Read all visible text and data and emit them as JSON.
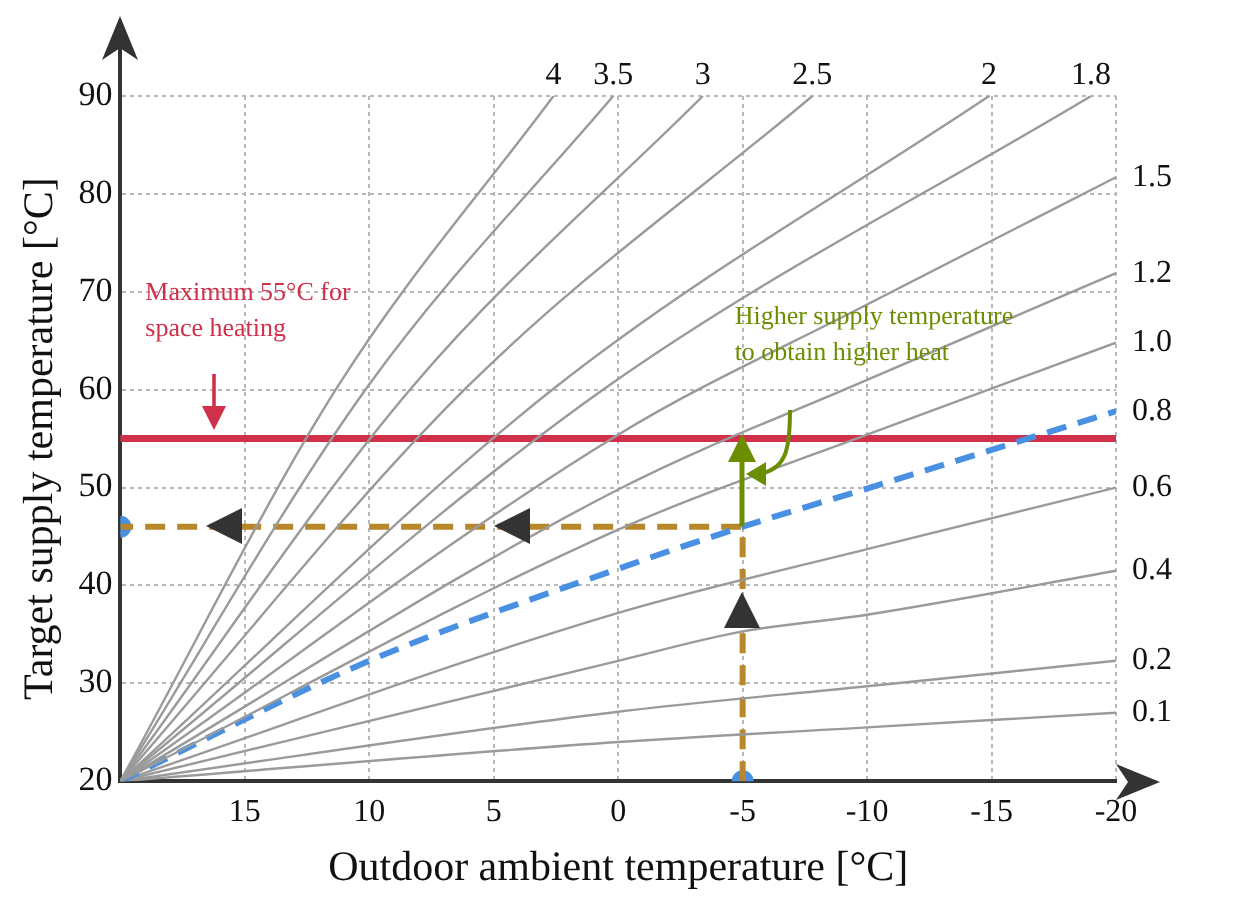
{
  "chart_data": {
    "type": "line",
    "xlabel": "Outdoor ambient temperature [°C]",
    "ylabel": "Target supply temperature [°C]",
    "xlim": [
      20,
      -20
    ],
    "xticks": [
      15,
      10,
      5,
      0,
      -5,
      -10,
      -15,
      -20
    ],
    "ylim": [
      20,
      90
    ],
    "yticks": [
      20,
      30,
      40,
      50,
      60,
      70,
      80,
      90
    ],
    "grid": true,
    "legend": false,
    "marker": "none",
    "series": [
      {
        "name": "4",
        "color": "#9a9a9a",
        "x": [
          20,
          11.3,
          2.6
        ],
        "values": [
          20,
          60.2,
          90
        ]
      },
      {
        "name": "3.5",
        "color": "#9a9a9a",
        "x": [
          20,
          10.1,
          0.2
        ],
        "values": [
          20,
          60.2,
          90
        ]
      },
      {
        "name": "3",
        "color": "#9a9a9a",
        "x": [
          20,
          8.3,
          -3.4
        ],
        "values": [
          20,
          60.2,
          90
        ]
      },
      {
        "name": "2.5",
        "color": "#9a9a9a",
        "x": [
          20,
          6.1,
          -7.8
        ],
        "values": [
          20,
          60.2,
          90
        ]
      },
      {
        "name": "2",
        "color": "#9a9a9a",
        "x": [
          20,
          2.55,
          -14.9
        ],
        "values": [
          20,
          60.2,
          90
        ]
      },
      {
        "name": "1.8",
        "color": "#9a9a9a",
        "x": [
          20,
          0.5,
          -19
        ],
        "values": [
          20,
          60.2,
          90
        ]
      },
      {
        "name": "1.5",
        "color": "#9a9a9a",
        "x": [
          20,
          0,
          -10,
          -20
        ],
        "values": [
          20,
          55.4,
          68.7,
          81.7
        ]
      },
      {
        "name": "1.2",
        "color": "#9a9a9a",
        "x": [
          20,
          0,
          -10,
          -20
        ],
        "values": [
          20,
          49.8,
          61,
          71.9
        ]
      },
      {
        "name": "1.0",
        "color": "#9a9a9a",
        "x": [
          20,
          0,
          -10,
          -20
        ],
        "values": [
          20,
          45.7,
          55.4,
          64.8
        ]
      },
      {
        "name": "0.8",
        "color": "#4a90e2",
        "line_style": "dashed",
        "x": [
          20,
          10,
          0,
          -5,
          -10,
          -20
        ],
        "values": [
          20,
          32.3,
          41.7,
          46,
          49.9,
          57.8
        ]
      },
      {
        "name": "0.6",
        "color": "#9a9a9a",
        "x": [
          20,
          0,
          -10,
          -20
        ],
        "values": [
          20,
          37.2,
          43.7,
          50
        ]
      },
      {
        "name": "0.4",
        "color": "#9a9a9a",
        "x": [
          20,
          0,
          -5,
          -10,
          -20
        ],
        "values": [
          20,
          32.3,
          35.3,
          37,
          41.5
        ]
      },
      {
        "name": "0.2",
        "color": "#9a9a9a",
        "x": [
          20,
          0,
          -10,
          -20
        ],
        "values": [
          20,
          27.1,
          29.7,
          32.3
        ]
      },
      {
        "name": "0.1",
        "color": "#9a9a9a",
        "x": [
          20,
          0,
          -10,
          -20
        ],
        "values": [
          20,
          24,
          25.5,
          27
        ]
      },
      {
        "type": "line",
        "color": "#b8862b",
        "line_style": "dashed",
        "x": [
          -5,
          -5,
          20
        ],
        "values": [
          20,
          46,
          46
        ]
      },
      {
        "type": "scatter",
        "color": "#4a90e2",
        "marker": "circle",
        "x": [
          -5,
          20
        ],
        "values": [
          20,
          46
        ]
      }
    ],
    "ref_lines": [
      {
        "axis": "y",
        "value": 55,
        "label": "Maximum 55°C for space heating",
        "color": "#d0304a"
      }
    ],
    "annotations": [
      {
        "text": "Higher supply temperature to obtain higher heat",
        "x": -5,
        "y": 55
      }
    ]
  }
}
